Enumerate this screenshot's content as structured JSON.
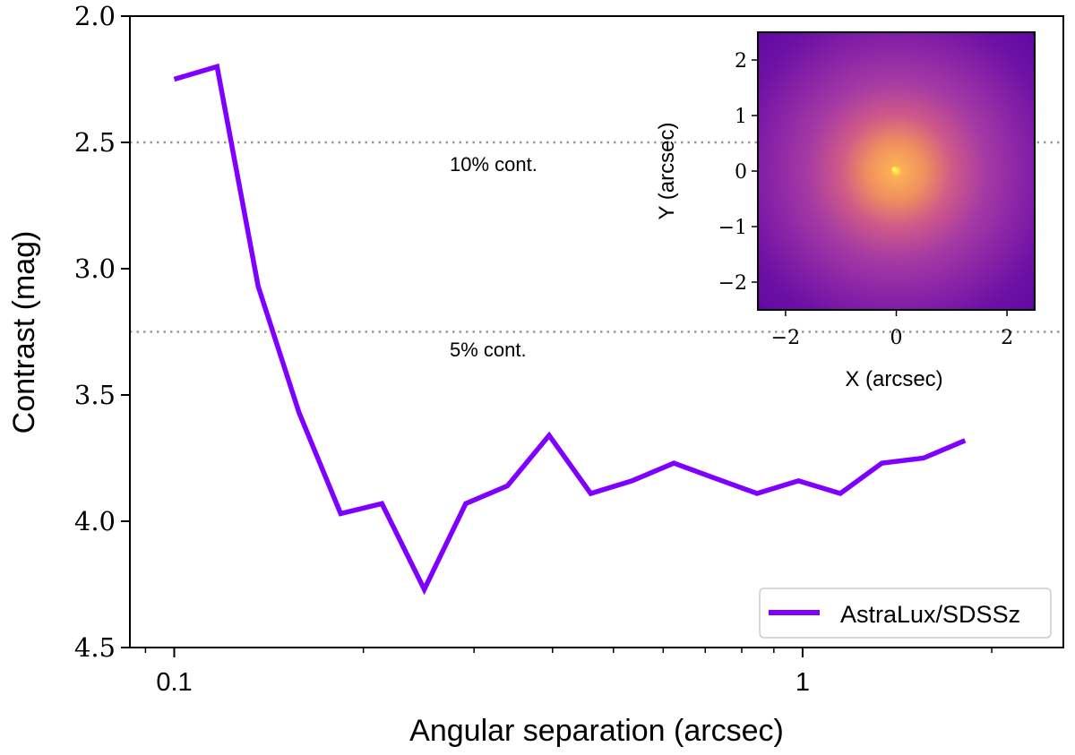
{
  "chart_data": {
    "type": "line",
    "xlabel": "Angular separation (arcsec)",
    "ylabel": "Contrast (mag)",
    "xscale": "log",
    "xlim": [
      0.085,
      2.6
    ],
    "ylim": [
      2.0,
      4.5
    ],
    "y_inverted": true,
    "yticks": [
      2.0,
      2.5,
      3.0,
      3.5,
      4.0,
      4.5
    ],
    "ytick_labels": [
      "2.0",
      "2.5",
      "3.0",
      "3.5",
      "4.0",
      "4.5"
    ],
    "xticks_major": [
      0.1,
      1
    ],
    "xtick_labels": [
      "0.1",
      "1"
    ],
    "series": [
      {
        "name": "AstraLux/SDSSz",
        "color": "#7f00ff",
        "x": [
          0.1,
          0.117,
          0.136,
          0.158,
          0.184,
          0.214,
          0.25,
          0.291,
          0.339,
          0.395,
          0.46,
          0.535,
          0.624,
          0.726,
          0.846,
          0.985,
          1.148,
          1.337,
          1.557,
          1.814
        ],
        "y": [
          2.25,
          2.2,
          3.07,
          3.57,
          3.97,
          3.93,
          4.27,
          3.93,
          3.86,
          3.66,
          3.89,
          3.84,
          3.77,
          3.83,
          3.89,
          3.84,
          3.89,
          3.77,
          3.75,
          3.68
        ]
      }
    ],
    "reference_lines": [
      {
        "y": 2.5,
        "label": "10% cont.",
        "color": "#999999",
        "style": "dotted"
      },
      {
        "y": 3.25,
        "label": "5% cont.",
        "color": "#999999",
        "style": "dotted"
      }
    ],
    "legend": {
      "position": "bottom-right",
      "entries": [
        "AstraLux/SDSSz"
      ]
    },
    "inset": {
      "type": "heatmap",
      "description_colormap": "plasma",
      "xlabel": "X (arcsec)",
      "ylabel": "Y (arcsec)",
      "xlim": [
        -2.5,
        2.5
      ],
      "ylim": [
        -2.5,
        2.5
      ],
      "xticks": [
        -2,
        0,
        2
      ],
      "xtick_labels": [
        "−2",
        "0",
        "2"
      ],
      "yticks": [
        -2,
        -1,
        0,
        1,
        2
      ],
      "ytick_labels": [
        "−2",
        "−1",
        "0",
        "1",
        "2"
      ],
      "peak": [
        0,
        0
      ]
    }
  }
}
